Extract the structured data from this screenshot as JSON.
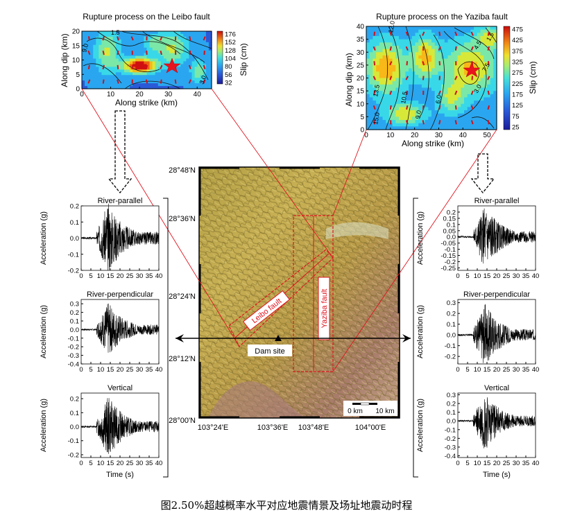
{
  "caption": "图2.50%超越概率水平对应地震情景及场址地震动时程",
  "rupture_left": {
    "title": "Rupture process on the Leibo fault",
    "xlabel": "Along strike (km)",
    "ylabel": "Along dip (km)",
    "colorbar_label": "Slip (cm)",
    "x_ticks": [
      "0",
      "10",
      "20",
      "30",
      "40"
    ],
    "y_ticks": [
      "20",
      "15",
      "10",
      "5",
      "0"
    ],
    "colorbar_ticks": [
      "176",
      "152",
      "128",
      "104",
      "80",
      "56",
      "32"
    ],
    "contour_labels": [
      "9.0",
      "1.5",
      "3.0"
    ]
  },
  "rupture_right": {
    "title": "Rupture process on the Yaziba fault",
    "xlabel": "Along strike (km)",
    "ylabel": "Along dip (km)",
    "colorbar_label": "Slip (cm)",
    "x_ticks": [
      "0",
      "10",
      "20",
      "30",
      "40",
      "50"
    ],
    "y_ticks": [
      "40",
      "35",
      "30",
      "25",
      "20",
      "15",
      "10",
      "5",
      "0"
    ],
    "colorbar_ticks": [
      "475",
      "425",
      "375",
      "325",
      "275",
      "225",
      "175",
      "125",
      "75",
      "25"
    ],
    "contour_labels": [
      "12.0",
      "4.5",
      "1.5",
      "13.5",
      "10.5",
      "9.0",
      "6.0",
      "3.0",
      "7.5",
      "15.0"
    ]
  },
  "map": {
    "lat_labels": [
      "28°48'N",
      "28°36'N",
      "28°24'N",
      "28°12'N",
      "28°00'N"
    ],
    "lon_labels": [
      "103°24'E",
      "103°36'E",
      "103°48'E",
      "104°00'E"
    ],
    "leibo_label": "Leibo fault",
    "yaziba_label": "Yaziba fault",
    "dam_label": "Dam site",
    "scale_labels": [
      "0 km",
      "10 km"
    ]
  },
  "left_records": {
    "panels": [
      {
        "title": "River-parallel",
        "y_ticks": [
          "0.2",
          "0.1",
          "0.0",
          "-0.1",
          "-0.2"
        ]
      },
      {
        "title": "River-perpendicular",
        "y_ticks": [
          "0.3",
          "0.2",
          "0.1",
          "0.0",
          "-0.1",
          "-0.2",
          "-0.3",
          "-0.4"
        ]
      },
      {
        "title": "Vertical",
        "y_ticks": [
          "0.2",
          "0.1",
          "0.0",
          "-0.1",
          "-0.2"
        ]
      }
    ],
    "ylabel": "Acceleration (g)",
    "xlabel": "Time (s)",
    "x_ticks": [
      "0",
      "5",
      "10",
      "15",
      "20",
      "25",
      "30",
      "35",
      "40"
    ]
  },
  "right_records": {
    "panels": [
      {
        "title": "River-parallel",
        "y_ticks": [
          "0.2",
          "0.15",
          "0.1",
          "0.05",
          "0.0",
          "-0.05",
          "-0.1",
          "-0.15",
          "-0.2",
          "-0.25"
        ]
      },
      {
        "title": "River-perpendicular",
        "y_ticks": [
          "0.3",
          "0.2",
          "0.1",
          "0.0",
          "-0.1",
          "-0.2"
        ]
      },
      {
        "title": "Vertical",
        "y_ticks": [
          "0.3",
          "0.2",
          "0.1",
          "0.0",
          "-0.1",
          "-0.2",
          "-0.3",
          "-0.4"
        ]
      }
    ],
    "ylabel": "Acceleration (g)",
    "xlabel": "Time (s)",
    "x_ticks": [
      "0",
      "5",
      "10",
      "15",
      "20",
      "25",
      "30",
      "35",
      "40"
    ]
  },
  "colors": {
    "fault_red": "#e0141e",
    "colormap": [
      "#1c1c9a",
      "#2a5ad8",
      "#2aa6f0",
      "#38d8e8",
      "#7be8a8",
      "#d8e838",
      "#f8b818",
      "#f06010",
      "#d01010"
    ]
  }
}
